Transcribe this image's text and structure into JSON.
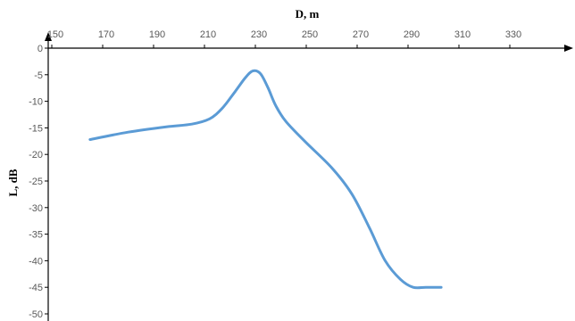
{
  "chart_data": {
    "type": "line",
    "xlabel": "D, m",
    "ylabel": "L, dB",
    "xlim": [
      150,
      350
    ],
    "ylim": [
      -50,
      0
    ],
    "x_ticks": [
      "150",
      "170",
      "190",
      "210",
      "230",
      "250",
      "270",
      "290",
      "310",
      "330"
    ],
    "y_ticks": [
      "0",
      "-5",
      "-10",
      "-15",
      "-20",
      "-25",
      "-30",
      "-35",
      "-40",
      "-45",
      "-50"
    ],
    "grid": false,
    "legend": "none",
    "series": [
      {
        "color": "#5b9bd5",
        "points": [
          [
            165,
            -17.2
          ],
          [
            180,
            -15.8
          ],
          [
            195,
            -14.8
          ],
          [
            205,
            -14.3
          ],
          [
            212,
            -13.3
          ],
          [
            217,
            -11.3
          ],
          [
            222,
            -8.2
          ],
          [
            226,
            -5.6
          ],
          [
            229,
            -4.3
          ],
          [
            232,
            -4.8
          ],
          [
            235,
            -7.5
          ],
          [
            238,
            -10.8
          ],
          [
            242,
            -13.8
          ],
          [
            250,
            -17.8
          ],
          [
            260,
            -22.5
          ],
          [
            268,
            -27.5
          ],
          [
            275,
            -34.0
          ],
          [
            281,
            -40.0
          ],
          [
            287,
            -43.5
          ],
          [
            292,
            -45.0
          ],
          [
            297,
            -45.0
          ],
          [
            303,
            -45.0
          ]
        ]
      }
    ]
  }
}
